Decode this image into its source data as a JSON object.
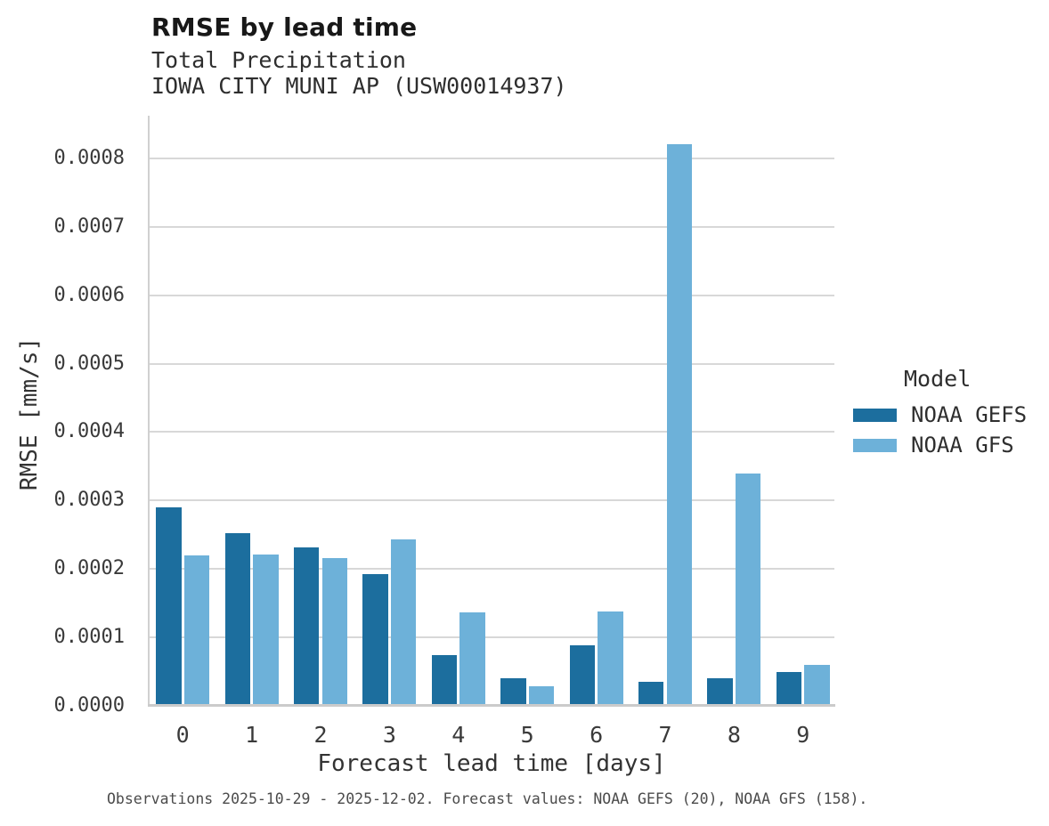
{
  "page": {
    "title": "RMSE by lead time",
    "subtitle_line1": "Total Precipitation",
    "subtitle_line2": "IOWA CITY MUNI AP (USW00014937)",
    "caption": "Observations 2025-10-29 - 2025-12-02. Forecast values: NOAA GEFS (20), NOAA GFS (158)."
  },
  "chart_data": {
    "type": "bar",
    "title": "RMSE by lead time",
    "subtitle": [
      "Total Precipitation",
      "IOWA CITY MUNI AP (USW00014937)"
    ],
    "xlabel": "Forecast lead time [days]",
    "ylabel": "RMSE [mm/s]",
    "categories": [
      "0",
      "1",
      "2",
      "3",
      "4",
      "5",
      "6",
      "7",
      "8",
      "9"
    ],
    "series": [
      {
        "name": "NOAA GEFS",
        "color": "#1c6e9e",
        "values": [
          0.00029,
          0.000252,
          0.000231,
          0.000193,
          7.4e-05,
          4e-05,
          8.9e-05,
          3.5e-05,
          4e-05,
          5e-05
        ]
      },
      {
        "name": "NOAA GFS",
        "color": "#6db1d9",
        "values": [
          0.00022,
          0.000221,
          0.000216,
          0.000243,
          0.000136,
          2.9e-05,
          0.000138,
          0.00082,
          0.00034,
          6e-05
        ]
      }
    ],
    "ylim": [
      0,
      0.00086
    ],
    "yticks": [
      0.0,
      0.0001,
      0.0002,
      0.0003,
      0.0004,
      0.0005,
      0.0006,
      0.0007,
      0.0008
    ],
    "ytick_labels": [
      "0.0000",
      "0.0001",
      "0.0002",
      "0.0003",
      "0.0004",
      "0.0005",
      "0.0006",
      "0.0007",
      "0.0008"
    ],
    "grid": "horizontal",
    "legend": {
      "title": "Model",
      "position": "right"
    },
    "caption": "Observations 2025-10-29 - 2025-12-02. Forecast values: NOAA GEFS (20), NOAA GFS (158)."
  }
}
